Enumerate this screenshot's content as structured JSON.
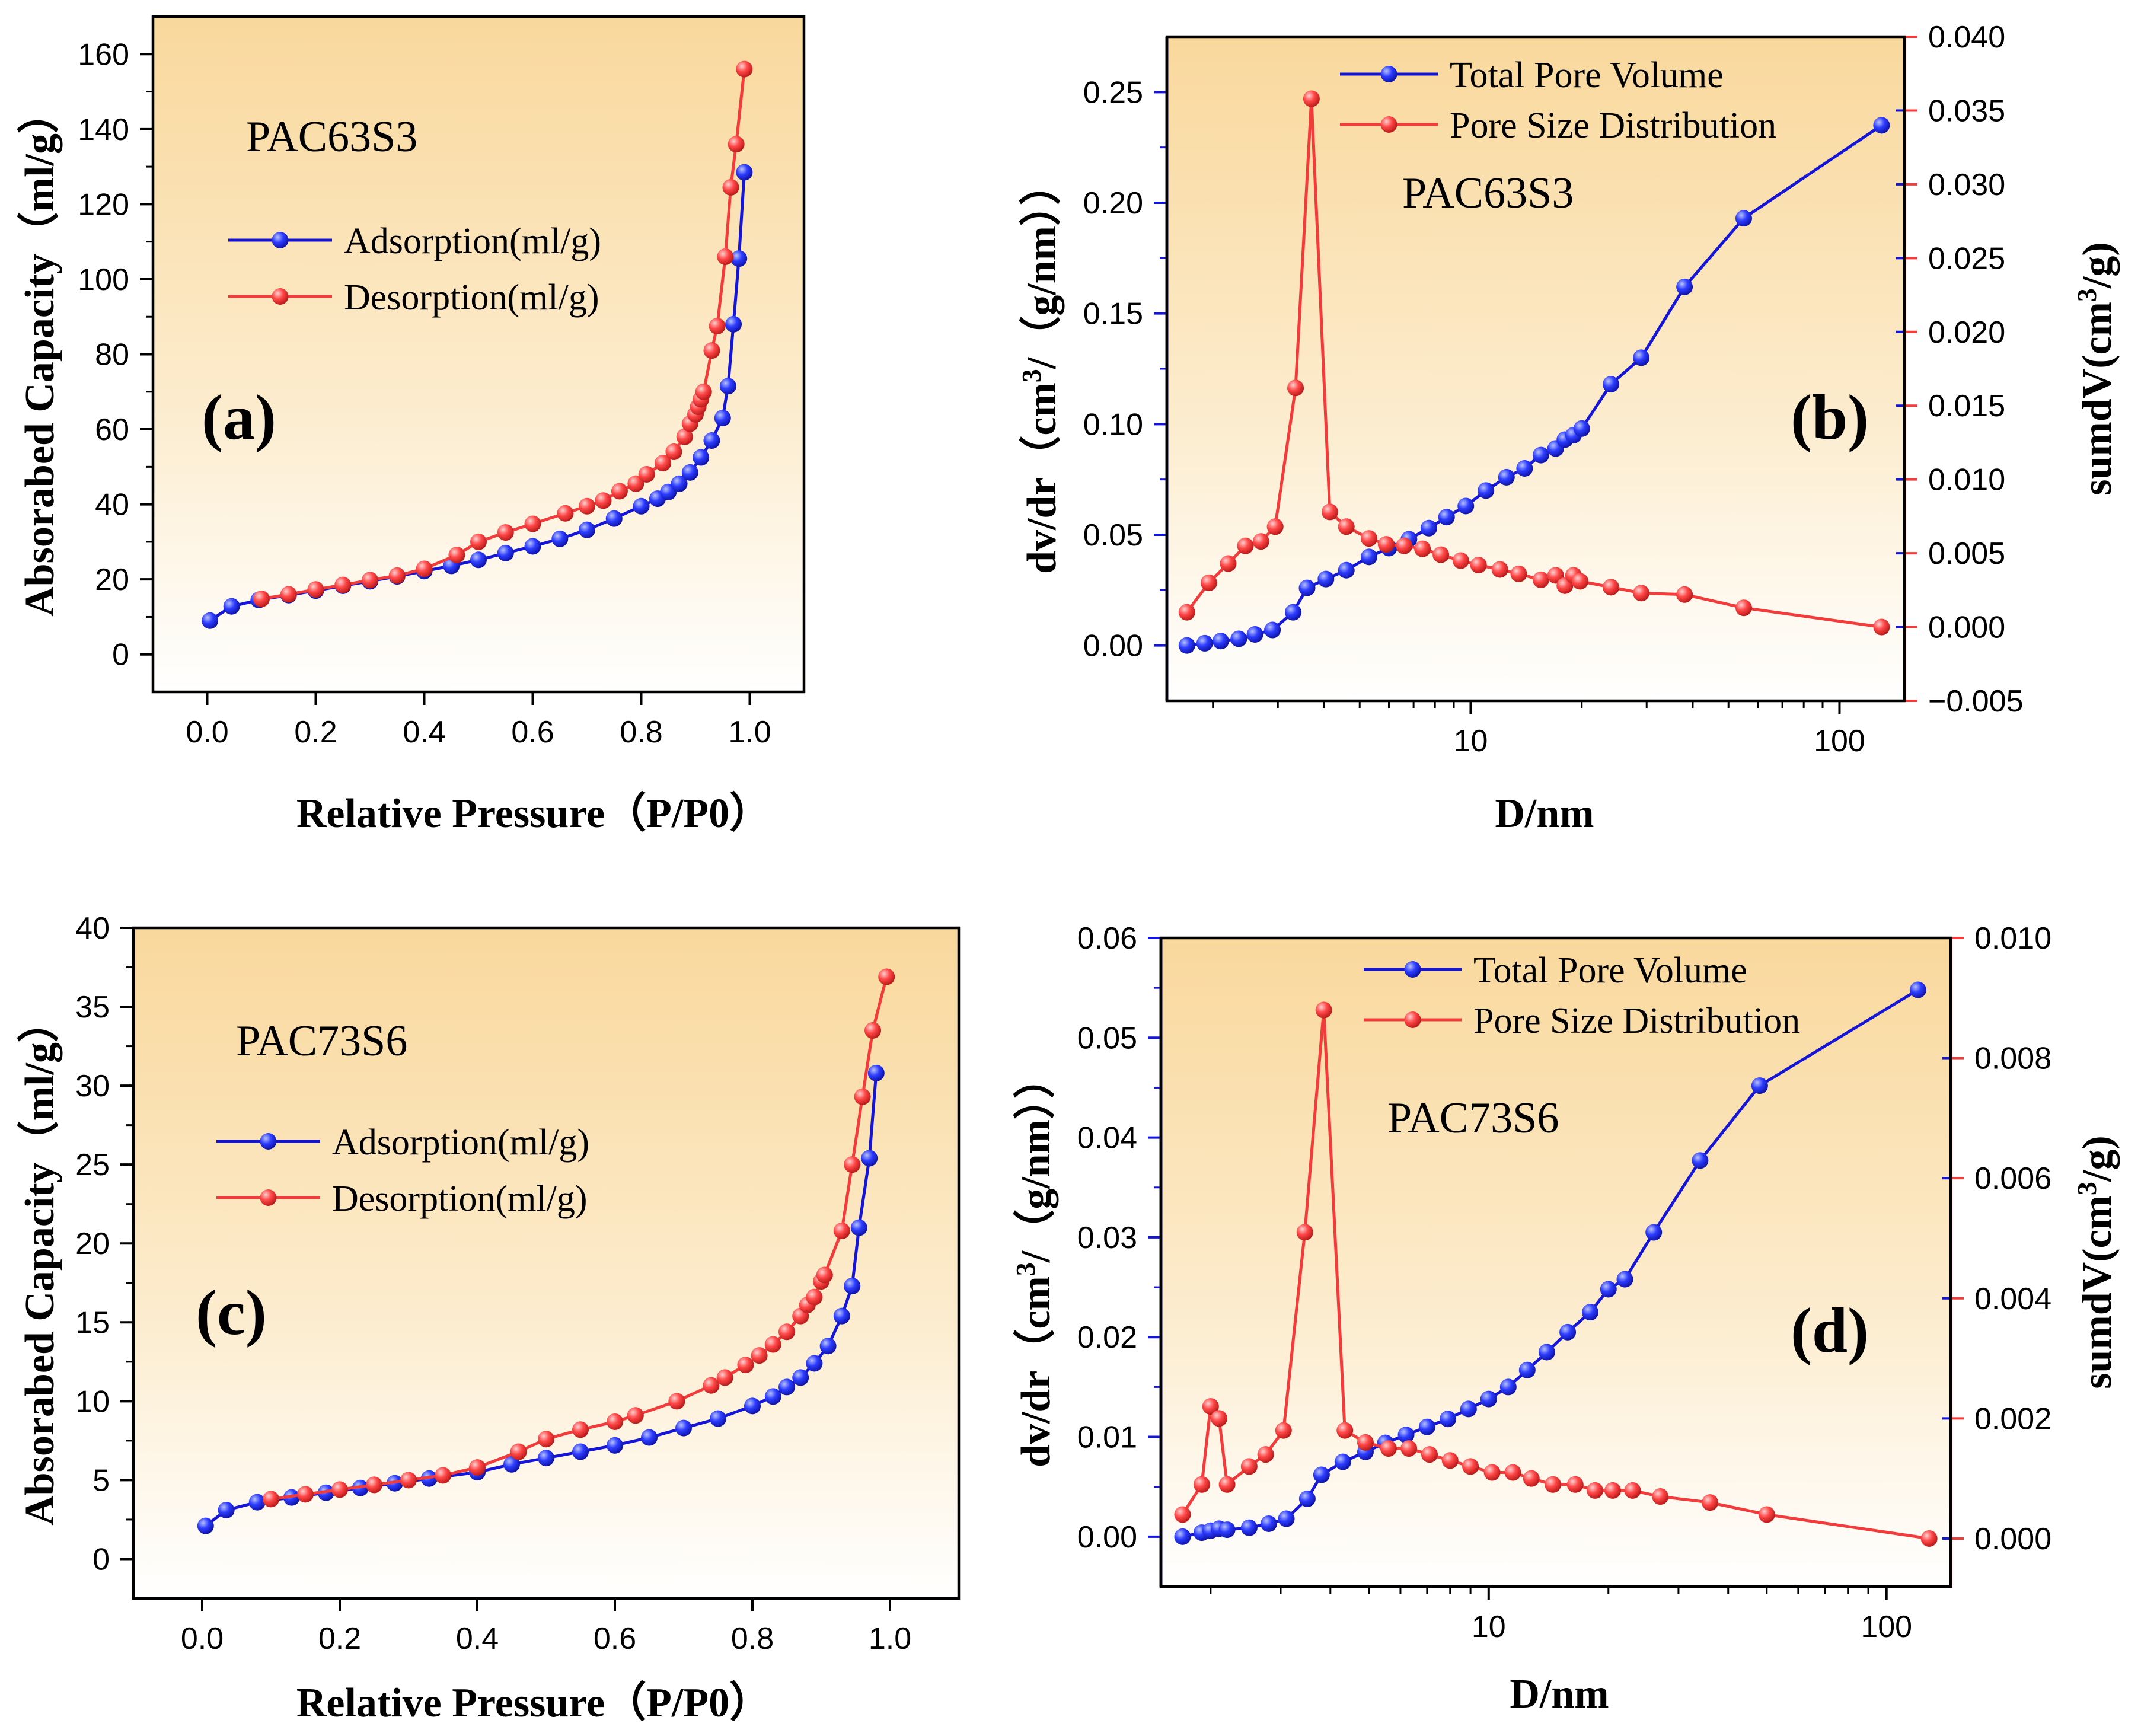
{
  "chart_data": [
    {
      "panel": "(a)",
      "type": "line",
      "sample": "PAC63S3",
      "xlabel": "Relative Pressure（P/P0）",
      "ylabel": "Absorabed Capacity（ml/g）",
      "xlim": [
        -0.1,
        1.1
      ],
      "ylim": [
        -10,
        170
      ],
      "xticks": [
        "0.0",
        "0.2",
        "0.4",
        "0.6",
        "0.8",
        "1.0"
      ],
      "yticks": [
        "0",
        "20",
        "40",
        "60",
        "80",
        "100",
        "120",
        "140",
        "160"
      ],
      "legend_position": "upper-left",
      "series": [
        {
          "name": "Adsorption(ml/g)",
          "color": "#1515d8",
          "points": [
            [
              0.005,
              9
            ],
            [
              0.045,
              12.8
            ],
            [
              0.095,
              14.5
            ],
            [
              0.15,
              15.8
            ],
            [
              0.2,
              17
            ],
            [
              0.25,
              18.3
            ],
            [
              0.3,
              19.5
            ],
            [
              0.35,
              20.8
            ],
            [
              0.4,
              22.2
            ],
            [
              0.45,
              23.6
            ],
            [
              0.5,
              25.2
            ],
            [
              0.55,
              27
            ],
            [
              0.6,
              28.8
            ],
            [
              0.65,
              30.8
            ],
            [
              0.7,
              33.2
            ],
            [
              0.75,
              36.2
            ],
            [
              0.8,
              39.5
            ],
            [
              0.83,
              41.5
            ],
            [
              0.85,
              43.3
            ],
            [
              0.87,
              45.5
            ],
            [
              0.89,
              48.5
            ],
            [
              0.91,
              52.5
            ],
            [
              0.93,
              57
            ],
            [
              0.95,
              63
            ],
            [
              0.96,
              71.5
            ],
            [
              0.97,
              88
            ],
            [
              0.98,
              105.5
            ],
            [
              0.99,
              128.5
            ]
          ]
        },
        {
          "name": "Desorption(ml/g)",
          "color": "#f23b3b",
          "points": [
            [
              0.1,
              14.8
            ],
            [
              0.15,
              16
            ],
            [
              0.2,
              17.3
            ],
            [
              0.25,
              18.5
            ],
            [
              0.3,
              19.8
            ],
            [
              0.35,
              21
            ],
            [
              0.4,
              22.8
            ],
            [
              0.46,
              26.5
            ],
            [
              0.5,
              30
            ],
            [
              0.55,
              32.5
            ],
            [
              0.6,
              34.8
            ],
            [
              0.66,
              37.6
            ],
            [
              0.7,
              39.5
            ],
            [
              0.73,
              41
            ],
            [
              0.76,
              43.5
            ],
            [
              0.79,
              45.5
            ],
            [
              0.81,
              48
            ],
            [
              0.84,
              51
            ],
            [
              0.86,
              54
            ],
            [
              0.88,
              58
            ],
            [
              0.89,
              61.5
            ],
            [
              0.9,
              64
            ],
            [
              0.905,
              66
            ],
            [
              0.91,
              68
            ],
            [
              0.915,
              70
            ],
            [
              0.93,
              81
            ],
            [
              0.94,
              87.5
            ],
            [
              0.955,
              106
            ],
            [
              0.965,
              124.5
            ],
            [
              0.975,
              136
            ],
            [
              0.99,
              156
            ]
          ]
        }
      ]
    },
    {
      "panel": "(b)",
      "type": "line",
      "sample": "PAC63S3",
      "xlabel": "D/nm",
      "ylabel_left": "dv/dr（cm3/（g/nm））",
      "ylabel_right": "sumdV(cm3/g)",
      "xscale": "log",
      "xlim": [
        1.5,
        150
      ],
      "xticks": [
        "10",
        "100"
      ],
      "ylim_left": [
        -0.025,
        0.275
      ],
      "yticks_left": [
        "0.00",
        "0.05",
        "0.10",
        "0.15",
        "0.20",
        "0.25"
      ],
      "ylim_right": [
        -0.005,
        0.04
      ],
      "yticks_right": [
        "−0.005",
        "0.000",
        "0.005",
        "0.010",
        "0.015",
        "0.020",
        "0.025",
        "0.030",
        "0.035",
        "0.040"
      ],
      "legend_position": "upper-center",
      "series": [
        {
          "name": "Total Pore Volume",
          "color": "#1515d8",
          "axis": "left",
          "points": [
            [
              1.7,
              0
            ],
            [
              1.9,
              0.001
            ],
            [
              2.1,
              0.002
            ],
            [
              2.35,
              0.003
            ],
            [
              2.6,
              0.005
            ],
            [
              2.9,
              0.007
            ],
            [
              3.3,
              0.015
            ],
            [
              3.6,
              0.026
            ],
            [
              4.05,
              0.03
            ],
            [
              4.6,
              0.034
            ],
            [
              5.3,
              0.04
            ],
            [
              6.0,
              0.044
            ],
            [
              6.8,
              0.048
            ],
            [
              7.7,
              0.053
            ],
            [
              8.6,
              0.058
            ],
            [
              9.7,
              0.063
            ],
            [
              11,
              0.07
            ],
            [
              12.5,
              0.076
            ],
            [
              14,
              0.08
            ],
            [
              15.5,
              0.086
            ],
            [
              17,
              0.089
            ],
            [
              18,
              0.093
            ],
            [
              19,
              0.095
            ],
            [
              20,
              0.098
            ],
            [
              24,
              0.118
            ],
            [
              29,
              0.13
            ],
            [
              38,
              0.162
            ],
            [
              55,
              0.193
            ],
            [
              130,
              0.235
            ]
          ]
        },
        {
          "name": "Pore Size Distribution",
          "color": "#f23b3b",
          "axis": "right",
          "points": [
            [
              1.7,
              0.001
            ],
            [
              1.95,
              0.003
            ],
            [
              2.2,
              0.0043
            ],
            [
              2.45,
              0.0055
            ],
            [
              2.7,
              0.0058
            ],
            [
              2.95,
              0.0068
            ],
            [
              3.35,
              0.0162
            ],
            [
              3.7,
              0.0358
            ],
            [
              4.15,
              0.0078
            ],
            [
              4.6,
              0.0068
            ],
            [
              5.3,
              0.006
            ],
            [
              5.9,
              0.0056
            ],
            [
              6.6,
              0.0055
            ],
            [
              7.4,
              0.0053
            ],
            [
              8.3,
              0.0049
            ],
            [
              9.4,
              0.0045
            ],
            [
              10.5,
              0.0042
            ],
            [
              12,
              0.0039
            ],
            [
              13.5,
              0.0036
            ],
            [
              15.5,
              0.0032
            ],
            [
              17,
              0.0035
            ],
            [
              18,
              0.0028
            ],
            [
              19,
              0.0035
            ],
            [
              19.8,
              0.0031
            ],
            [
              24,
              0.0027
            ],
            [
              29,
              0.0023
            ],
            [
              38,
              0.0022
            ],
            [
              55,
              0.0013
            ],
            [
              130,
              0
            ]
          ]
        }
      ]
    },
    {
      "panel": "(c)",
      "type": "line",
      "sample": "PAC73S6",
      "xlabel": "Relative Pressure（P/P0）",
      "ylabel": "Absorabed Capacity（ml/g）",
      "xlim": [
        -0.1,
        1.1
      ],
      "ylim": [
        -2.5,
        40
      ],
      "xticks": [
        "0.0",
        "0.2",
        "0.4",
        "0.6",
        "0.8",
        "1.0"
      ],
      "yticks": [
        "0",
        "5",
        "10",
        "15",
        "20",
        "25",
        "30",
        "35",
        "40"
      ],
      "legend_position": "upper-left",
      "series": [
        {
          "name": "Adsorption(ml/g)",
          "color": "#1515d8",
          "points": [
            [
              0.005,
              2.1
            ],
            [
              0.035,
              3.1
            ],
            [
              0.08,
              3.6
            ],
            [
              0.13,
              3.9
            ],
            [
              0.18,
              4.2
            ],
            [
              0.23,
              4.5
            ],
            [
              0.28,
              4.8
            ],
            [
              0.33,
              5.1
            ],
            [
              0.4,
              5.5
            ],
            [
              0.45,
              6
            ],
            [
              0.5,
              6.4
            ],
            [
              0.55,
              6.8
            ],
            [
              0.6,
              7.2
            ],
            [
              0.65,
              7.7
            ],
            [
              0.7,
              8.3
            ],
            [
              0.75,
              8.9
            ],
            [
              0.8,
              9.7
            ],
            [
              0.83,
              10.3
            ],
            [
              0.85,
              10.9
            ],
            [
              0.87,
              11.5
            ],
            [
              0.89,
              12.4
            ],
            [
              0.91,
              13.5
            ],
            [
              0.93,
              15.4
            ],
            [
              0.945,
              17.3
            ],
            [
              0.955,
              21
            ],
            [
              0.97,
              25.4
            ],
            [
              0.98,
              30.8
            ]
          ]
        },
        {
          "name": "Desorption(ml/g)",
          "color": "#f23b3b",
          "points": [
            [
              0.1,
              3.8
            ],
            [
              0.15,
              4.1
            ],
            [
              0.2,
              4.4
            ],
            [
              0.25,
              4.7
            ],
            [
              0.3,
              5
            ],
            [
              0.35,
              5.3
            ],
            [
              0.4,
              5.8
            ],
            [
              0.46,
              6.8
            ],
            [
              0.5,
              7.6
            ],
            [
              0.55,
              8.2
            ],
            [
              0.6,
              8.7
            ],
            [
              0.63,
              9.1
            ],
            [
              0.69,
              10
            ],
            [
              0.74,
              11
            ],
            [
              0.76,
              11.5
            ],
            [
              0.79,
              12.3
            ],
            [
              0.81,
              12.9
            ],
            [
              0.83,
              13.6
            ],
            [
              0.85,
              14.4
            ],
            [
              0.87,
              15.4
            ],
            [
              0.88,
              16.1
            ],
            [
              0.89,
              16.6
            ],
            [
              0.9,
              17.6
            ],
            [
              0.905,
              18
            ],
            [
              0.93,
              20.8
            ],
            [
              0.945,
              25
            ],
            [
              0.96,
              29.3
            ],
            [
              0.975,
              33.5
            ],
            [
              0.995,
              36.9
            ]
          ]
        }
      ]
    },
    {
      "panel": "(d)",
      "type": "line",
      "sample": "PAC73S6",
      "xlabel": "D/nm",
      "ylabel_left": "dv/dr（cm3/（g/nm））",
      "ylabel_right": "sumdV(cm3/g)",
      "xscale": "log",
      "xlim": [
        1.5,
        145
      ],
      "xticks": [
        "10",
        "100"
      ],
      "ylim_left": [
        -0.005,
        0.06
      ],
      "yticks_left": [
        "0.00",
        "0.01",
        "0.02",
        "0.03",
        "0.04",
        "0.05",
        "0.06"
      ],
      "ylim_right": [
        -0.0008,
        0.01
      ],
      "yticks_right": [
        "0.000",
        "0.002",
        "0.004",
        "0.006",
        "0.008",
        "0.010"
      ],
      "legend_position": "upper-center",
      "series": [
        {
          "name": "Total Pore Volume",
          "color": "#1515d8",
          "axis": "left",
          "points": [
            [
              1.7,
              0
            ],
            [
              1.9,
              0.0004
            ],
            [
              2.0,
              0.0006
            ],
            [
              2.1,
              0.0008
            ],
            [
              2.2,
              0.0007
            ],
            [
              2.5,
              0.0009
            ],
            [
              2.8,
              0.0013
            ],
            [
              3.1,
              0.0018
            ],
            [
              3.5,
              0.0038
            ],
            [
              3.8,
              0.0062
            ],
            [
              4.3,
              0.0075
            ],
            [
              4.9,
              0.0085
            ],
            [
              5.5,
              0.0094
            ],
            [
              6.2,
              0.0102
            ],
            [
              7.0,
              0.011
            ],
            [
              7.9,
              0.0118
            ],
            [
              8.9,
              0.0128
            ],
            [
              10,
              0.0138
            ],
            [
              11.2,
              0.015
            ],
            [
              12.5,
              0.0167
            ],
            [
              14,
              0.0185
            ],
            [
              15.8,
              0.0205
            ],
            [
              18,
              0.0225
            ],
            [
              20,
              0.0248
            ],
            [
              22,
              0.0258
            ],
            [
              26,
              0.0305
            ],
            [
              34,
              0.0377
            ],
            [
              48,
              0.0452
            ],
            [
              120,
              0.0548
            ]
          ]
        },
        {
          "name": "Pore Size Distribution",
          "color": "#f23b3b",
          "axis": "right",
          "points": [
            [
              1.7,
              0.0004
            ],
            [
              1.9,
              0.0009
            ],
            [
              2.0,
              0.0022
            ],
            [
              2.1,
              0.002
            ],
            [
              2.2,
              0.0009
            ],
            [
              2.5,
              0.0012
            ],
            [
              2.75,
              0.0014
            ],
            [
              3.05,
              0.0018
            ],
            [
              3.45,
              0.0051
            ],
            [
              3.85,
              0.0088
            ],
            [
              4.35,
              0.0018
            ],
            [
              4.9,
              0.0016
            ],
            [
              5.6,
              0.0015
            ],
            [
              6.3,
              0.0015
            ],
            [
              7.1,
              0.0014
            ],
            [
              8.0,
              0.0013
            ],
            [
              9.0,
              0.0012
            ],
            [
              10.2,
              0.0011
            ],
            [
              11.5,
              0.0011
            ],
            [
              12.8,
              0.001
            ],
            [
              14.5,
              0.0009
            ],
            [
              16.5,
              0.0009
            ],
            [
              18.5,
              0.0008
            ],
            [
              20.5,
              0.0008
            ],
            [
              23,
              0.0008
            ],
            [
              27,
              0.0007
            ],
            [
              36,
              0.0006
            ],
            [
              50,
              0.0004
            ],
            [
              128,
              0
            ]
          ]
        }
      ]
    }
  ]
}
